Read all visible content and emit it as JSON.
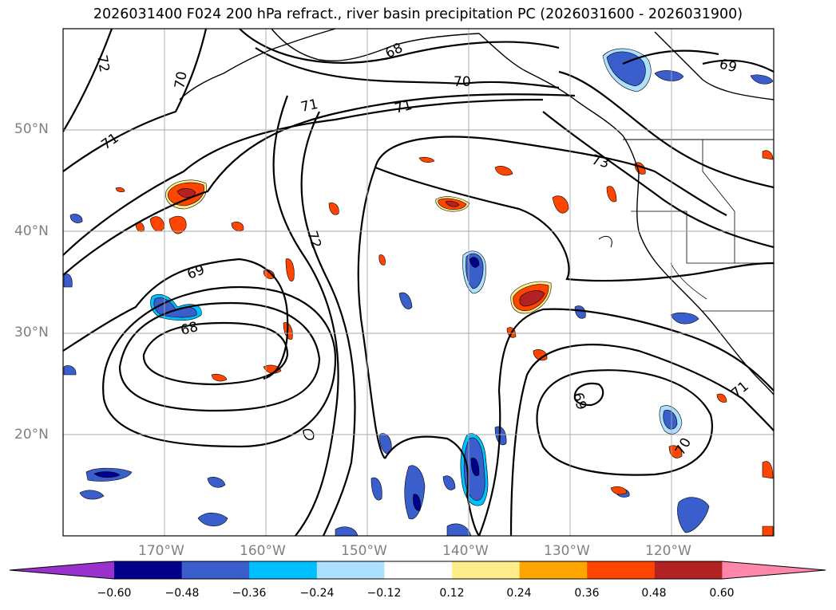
{
  "title": "2026031400 F024 200 hPa refract., river basin precipitation PC (2026031600 - 2026031900)",
  "map": {
    "lon_range": [
      -180,
      -110
    ],
    "lat_range": [
      10,
      60
    ],
    "lat_labels": [
      "50°N",
      "40°N",
      "30°N",
      "20°N"
    ],
    "lon_labels": [
      "170°W",
      "160°W",
      "150°W",
      "140°W",
      "130°W",
      "120°W"
    ],
    "contour_labels": [
      "72",
      "70",
      "68",
      "69",
      "70",
      "71",
      "71",
      "73",
      "72",
      "69",
      "68",
      "69",
      "70",
      "71",
      "71"
    ]
  },
  "colorbar": {
    "colors": [
      "#9932CC",
      "#00008B",
      "#3A5FCD",
      "#00BFFF",
      "#ADDFFF",
      "#FFFFFF",
      "#FFEC8B",
      "#FFA500",
      "#FF4500",
      "#B22222",
      "#FF88AA"
    ],
    "ticks": [
      "−0.60",
      "−0.48",
      "−0.36",
      "−0.24",
      "−0.12",
      "0.12",
      "0.24",
      "0.36",
      "0.48",
      "0.60"
    ]
  }
}
